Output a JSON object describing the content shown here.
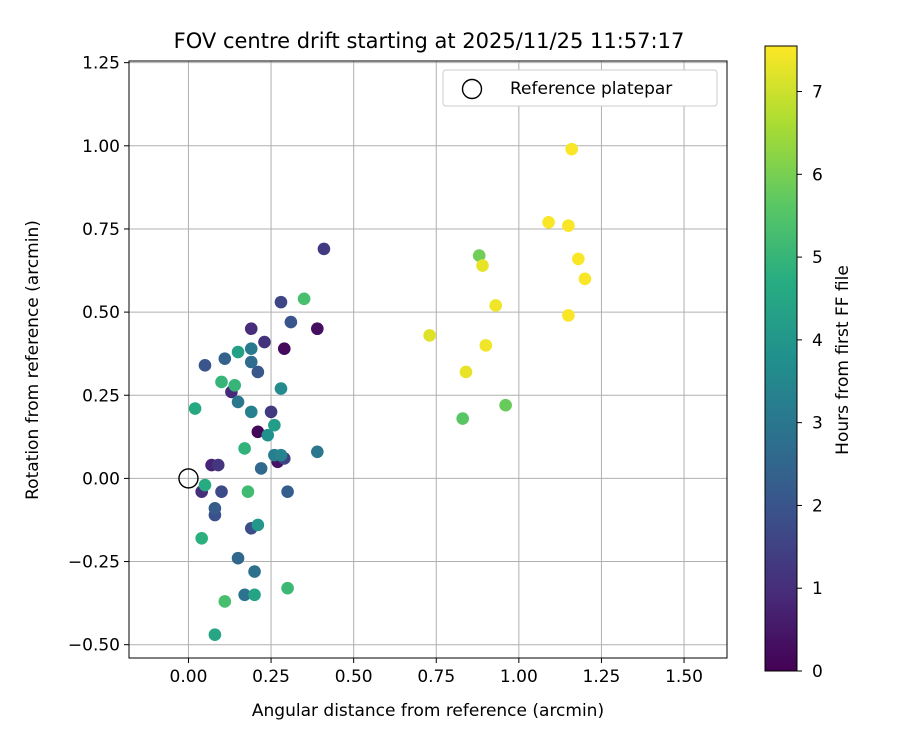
{
  "chart_data": {
    "type": "scatter",
    "title": "FOV centre drift starting at 2025/11/25 11:57:17",
    "xlabel": "Angular distance from reference (arcmin)",
    "ylabel": "Rotation from reference (arcmin)",
    "xlim": [
      -0.18,
      1.63
    ],
    "ylim": [
      -0.54,
      1.255
    ],
    "xticks": [
      0.0,
      0.25,
      0.5,
      0.75,
      1.0,
      1.25,
      1.5
    ],
    "xtick_labels": [
      "0.00",
      "0.25",
      "0.50",
      "0.75",
      "1.00",
      "1.25",
      "1.50"
    ],
    "yticks": [
      -0.5,
      -0.25,
      0.0,
      0.25,
      0.5,
      0.75,
      1.0,
      1.25
    ],
    "ytick_labels": [
      "−0.50",
      "−0.25",
      "0.00",
      "0.25",
      "0.50",
      "0.75",
      "1.00",
      "1.25"
    ],
    "grid": true,
    "legend": {
      "position": "top-right",
      "entries": [
        "Reference platepar"
      ]
    },
    "reference_point": {
      "x": 0.0,
      "y": 0.0,
      "label": "Reference platepar"
    },
    "colorbar": {
      "label": "Hours from first FF file",
      "min": 0,
      "max": 7.55,
      "ticks": [
        0,
        1,
        2,
        3,
        4,
        5,
        6,
        7
      ],
      "tick_labels": [
        "0",
        "1",
        "2",
        "3",
        "4",
        "5",
        "6",
        "7"
      ],
      "colormap": "viridis"
    },
    "points": [
      {
        "x": 0.21,
        "y": 0.14,
        "hours": 0.1
      },
      {
        "x": 0.29,
        "y": 0.39,
        "hours": 0.2
      },
      {
        "x": 0.39,
        "y": 0.45,
        "hours": 0.3
      },
      {
        "x": 0.27,
        "y": 0.05,
        "hours": 0.4
      },
      {
        "x": 0.07,
        "y": 0.04,
        "hours": 0.8
      },
      {
        "x": 0.13,
        "y": 0.26,
        "hours": 0.9
      },
      {
        "x": 0.04,
        "y": -0.04,
        "hours": 1.0
      },
      {
        "x": 0.19,
        "y": 0.45,
        "hours": 1.0
      },
      {
        "x": 0.23,
        "y": 0.41,
        "hours": 1.1
      },
      {
        "x": 0.09,
        "y": 0.04,
        "hours": 1.2
      },
      {
        "x": 0.41,
        "y": 0.69,
        "hours": 1.3
      },
      {
        "x": 0.25,
        "y": 0.2,
        "hours": 1.3
      },
      {
        "x": 0.29,
        "y": 0.06,
        "hours": 1.5
      },
      {
        "x": 0.28,
        "y": 0.53,
        "hours": 1.6
      },
      {
        "x": 0.1,
        "y": -0.04,
        "hours": 1.7
      },
      {
        "x": 0.19,
        "y": -0.15,
        "hours": 1.8
      },
      {
        "x": 0.08,
        "y": -0.11,
        "hours": 1.9
      },
      {
        "x": 0.05,
        "y": 0.34,
        "hours": 2.0
      },
      {
        "x": 0.31,
        "y": 0.47,
        "hours": 2.0
      },
      {
        "x": 0.21,
        "y": 0.32,
        "hours": 2.1
      },
      {
        "x": 0.08,
        "y": -0.09,
        "hours": 2.2
      },
      {
        "x": 0.3,
        "y": -0.04,
        "hours": 2.3
      },
      {
        "x": 0.11,
        "y": 0.36,
        "hours": 2.4
      },
      {
        "x": 0.15,
        "y": -0.24,
        "hours": 2.5
      },
      {
        "x": 0.22,
        "y": 0.03,
        "hours": 2.6
      },
      {
        "x": 0.19,
        "y": 0.35,
        "hours": 2.7
      },
      {
        "x": 0.2,
        "y": -0.28,
        "hours": 2.8
      },
      {
        "x": 0.17,
        "y": -0.35,
        "hours": 2.9
      },
      {
        "x": 0.15,
        "y": 0.23,
        "hours": 3.0
      },
      {
        "x": 0.39,
        "y": 0.08,
        "hours": 3.0
      },
      {
        "x": 0.19,
        "y": 0.39,
        "hours": 3.1
      },
      {
        "x": 0.26,
        "y": 0.07,
        "hours": 3.2
      },
      {
        "x": 0.19,
        "y": 0.2,
        "hours": 3.3
      },
      {
        "x": 0.28,
        "y": 0.07,
        "hours": 3.4
      },
      {
        "x": 0.28,
        "y": 0.27,
        "hours": 3.6
      },
      {
        "x": 0.24,
        "y": 0.13,
        "hours": 3.8
      },
      {
        "x": 0.21,
        "y": -0.14,
        "hours": 4.0
      },
      {
        "x": 0.26,
        "y": 0.16,
        "hours": 4.2
      },
      {
        "x": 0.15,
        "y": 0.38,
        "hours": 4.3
      },
      {
        "x": 0.2,
        "y": -0.35,
        "hours": 4.4
      },
      {
        "x": 0.08,
        "y": -0.47,
        "hours": 4.5
      },
      {
        "x": 0.02,
        "y": 0.21,
        "hours": 4.6
      },
      {
        "x": 0.05,
        "y": -0.02,
        "hours": 4.7
      },
      {
        "x": 0.04,
        "y": -0.18,
        "hours": 4.8
      },
      {
        "x": 0.17,
        "y": 0.09,
        "hours": 4.9
      },
      {
        "x": 0.1,
        "y": 0.29,
        "hours": 5.0
      },
      {
        "x": 0.14,
        "y": 0.28,
        "hours": 5.0
      },
      {
        "x": 0.3,
        "y": -0.33,
        "hours": 5.1
      },
      {
        "x": 0.18,
        "y": -0.04,
        "hours": 5.2
      },
      {
        "x": 0.35,
        "y": 0.54,
        "hours": 5.3
      },
      {
        "x": 0.11,
        "y": -0.37,
        "hours": 5.3
      },
      {
        "x": 0.83,
        "y": 0.18,
        "hours": 5.6
      },
      {
        "x": 0.96,
        "y": 0.22,
        "hours": 5.8
      },
      {
        "x": 0.88,
        "y": 0.67,
        "hours": 5.9
      },
      {
        "x": 0.73,
        "y": 0.43,
        "hours": 7.2
      },
      {
        "x": 0.84,
        "y": 0.32,
        "hours": 7.3
      },
      {
        "x": 0.89,
        "y": 0.64,
        "hours": 7.3
      },
      {
        "x": 0.93,
        "y": 0.52,
        "hours": 7.4
      },
      {
        "x": 0.9,
        "y": 0.4,
        "hours": 7.4
      },
      {
        "x": 1.09,
        "y": 0.77,
        "hours": 7.5
      },
      {
        "x": 1.15,
        "y": 0.76,
        "hours": 7.5
      },
      {
        "x": 1.16,
        "y": 0.99,
        "hours": 7.5
      },
      {
        "x": 1.18,
        "y": 0.66,
        "hours": 7.5
      },
      {
        "x": 1.2,
        "y": 0.6,
        "hours": 7.5
      },
      {
        "x": 1.15,
        "y": 0.49,
        "hours": 7.5
      }
    ]
  }
}
